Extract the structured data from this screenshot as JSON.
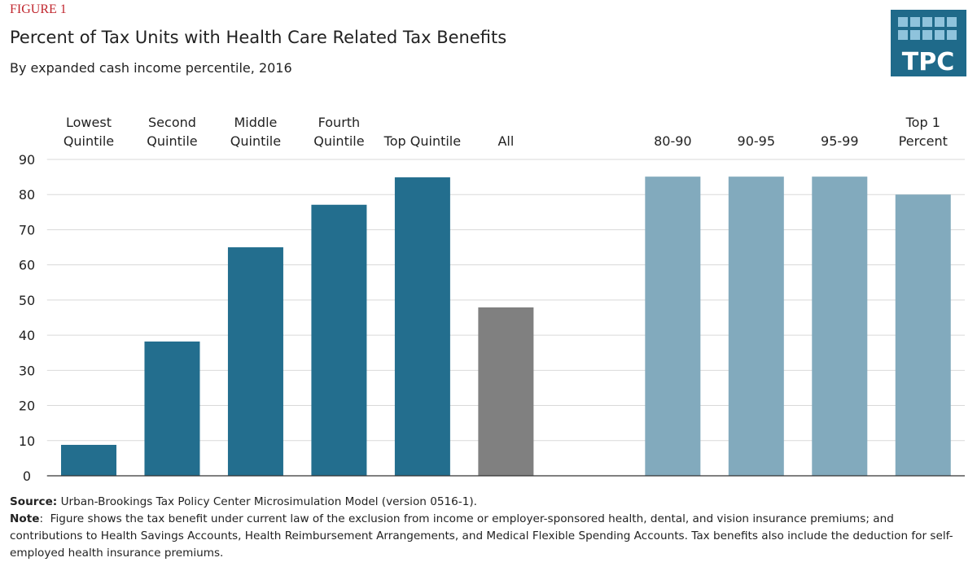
{
  "chart_data": {
    "type": "bar",
    "figure_label": "FIGURE 1",
    "title": "Percent of Tax Units with Health Care Related Tax Benefits",
    "subtitle": "By expanded cash income percentile, 2016",
    "logo": "TPC",
    "categories": [
      [
        "Lowest",
        "Quintile"
      ],
      [
        "Second",
        "Quintile"
      ],
      [
        "Middle",
        "Quintile"
      ],
      [
        "Fourth",
        "Quintile"
      ],
      [
        "Top Quintile"
      ],
      [
        "All"
      ],
      null,
      [
        "80-90"
      ],
      [
        "90-95"
      ],
      [
        "95-99"
      ],
      [
        "Top 1",
        "Percent"
      ]
    ],
    "values": [
      8.8,
      38.2,
      65,
      77.1,
      84.9,
      47.9,
      null,
      85.1,
      85.1,
      85.1,
      80
    ],
    "colors": [
      "#236e8e",
      "#236e8e",
      "#236e8e",
      "#236e8e",
      "#236e8e",
      "#808080",
      null,
      "#82aabd",
      "#82aabd",
      "#82aabd",
      "#82aabd"
    ],
    "ylim": [
      0,
      90
    ],
    "yticks": [
      0,
      10,
      20,
      30,
      40,
      50,
      60,
      70,
      80,
      90
    ],
    "grid": true,
    "source_label": "Source:",
    "source_text": "Urban-Brookings Tax Policy Center Microsimulation Model (version 0516-1).",
    "note_label": "Note",
    "note_text": ":  Figure shows the tax benefit under current law of the exclusion from income or employer-sponsored health, dental, and vision insurance premiums; and contributions to Health Savings Accounts, Health Reimbursement Arrangements, and Medical Flexible Spending Accounts. Tax benefits also include the deduction for self-employed health insurance premiums."
  }
}
